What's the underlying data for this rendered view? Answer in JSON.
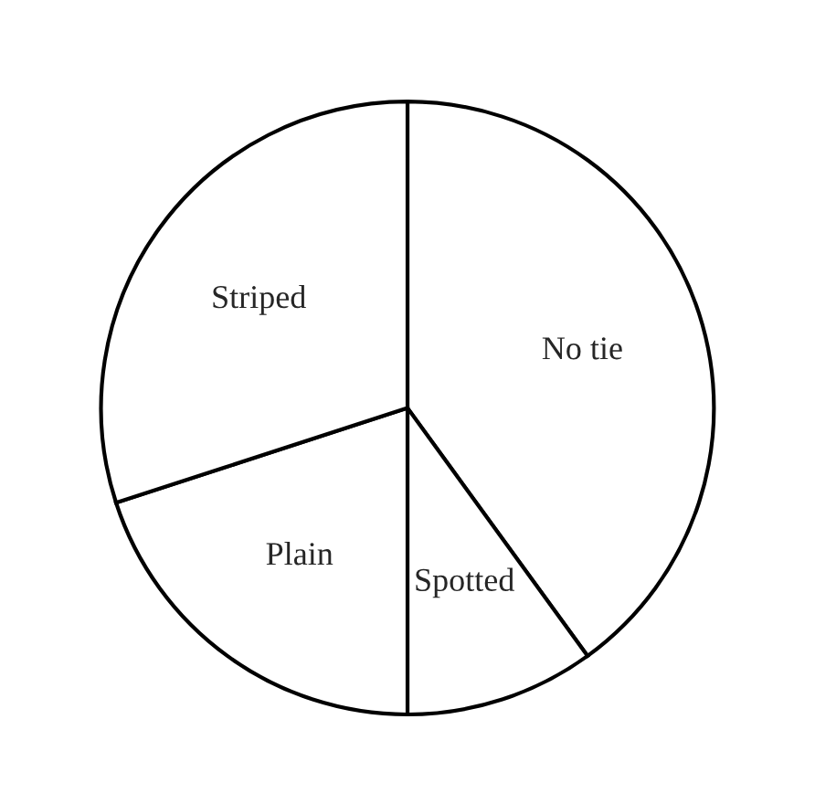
{
  "chart_data": {
    "type": "pie",
    "categories": [
      "No tie",
      "Spotted",
      "Plain",
      "Striped"
    ],
    "values": [
      40,
      10,
      20,
      30
    ],
    "colors": [
      "#ffffff",
      "#ffffff",
      "#ffffff",
      "#ffffff"
    ]
  }
}
